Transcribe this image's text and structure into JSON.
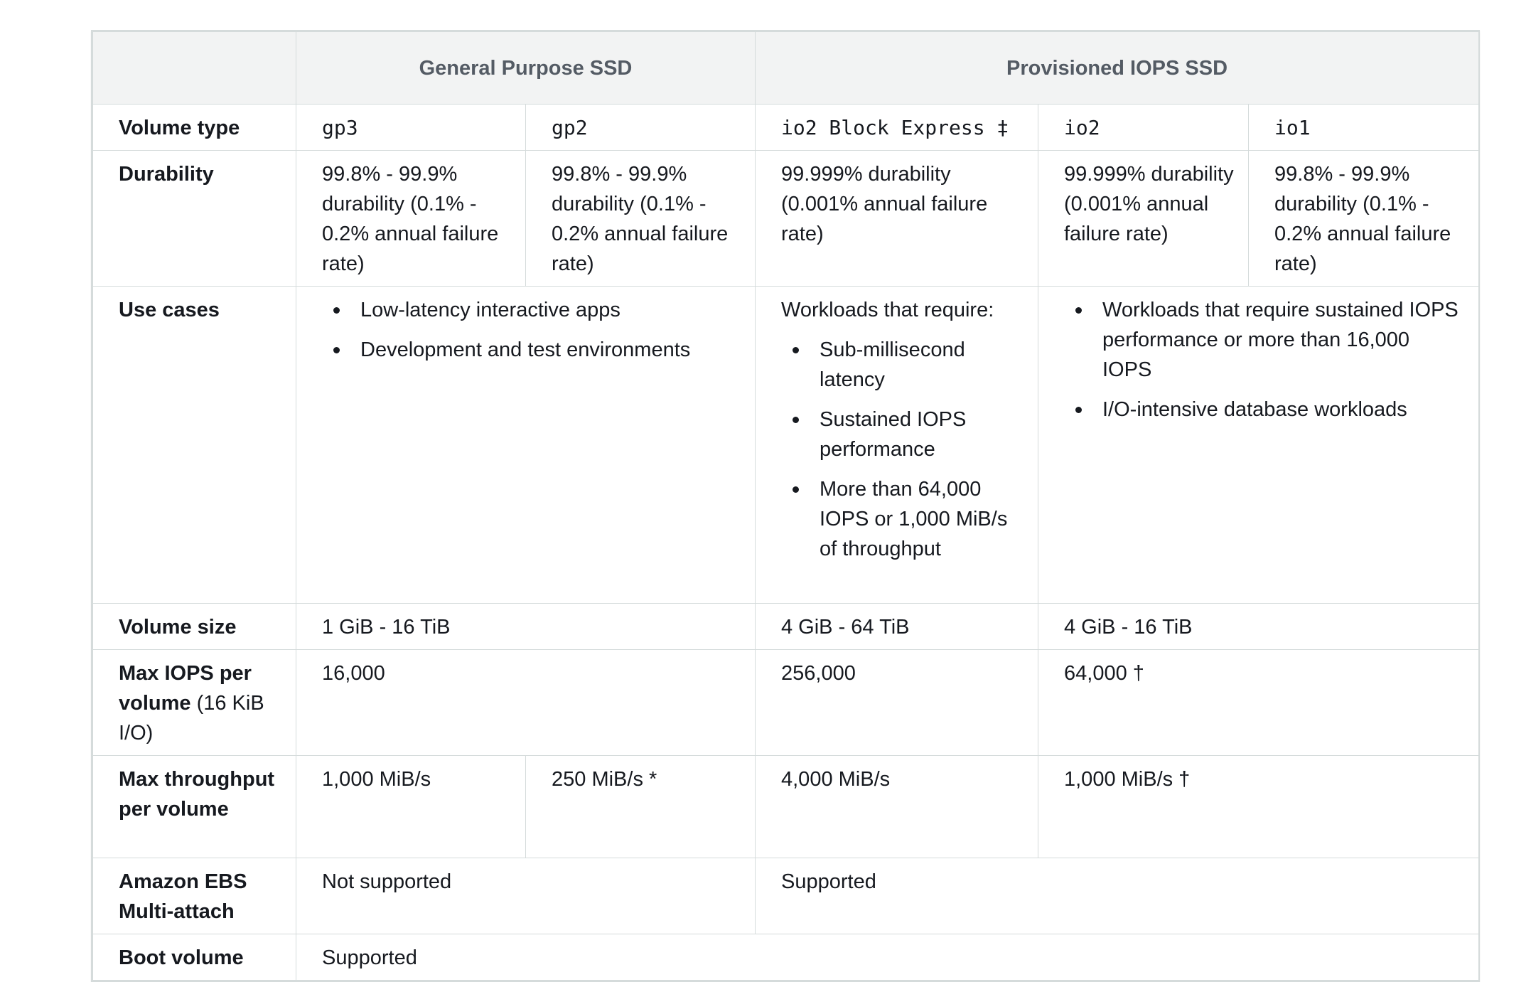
{
  "header": {
    "corner": "",
    "groups": [
      "General Purpose SSD",
      "Provisioned IOPS SSD"
    ]
  },
  "rows": {
    "volume_type": {
      "label": "Volume type",
      "values": [
        "gp3",
        "gp2",
        "io2 Block Express ‡",
        "io2",
        "io1"
      ]
    },
    "durability": {
      "label": "Durability",
      "values": [
        "99.8% - 99.9% durability (0.1% - 0.2% annual failure rate)",
        "99.8% - 99.9% durability (0.1% - 0.2% annual failure rate)",
        "99.999% durability (0.001% annual failure rate)",
        "99.999% durability (0.001% annual failure rate)",
        "99.8% - 99.9% durability (0.1% - 0.2% annual failure rate)"
      ]
    },
    "use_cases": {
      "label": "Use cases",
      "general_purpose": [
        "Low-latency interactive apps",
        "Development and test environments"
      ],
      "io2_block_express_intro": "Workloads that require:",
      "io2_block_express": [
        "Sub-millisecond latency",
        "Sustained IOPS performance",
        "More than 64,000 IOPS or 1,000 MiB/s of throughput"
      ],
      "io2_io1": [
        "Workloads that require sustained IOPS performance or more than 16,000 IOPS",
        "I/O-intensive database workloads"
      ]
    },
    "volume_size": {
      "label": "Volume size",
      "general_purpose": "1 GiB - 16 TiB",
      "io2_block_express": "4 GiB - 64 TiB",
      "io2_io1": "4 GiB - 16 TiB"
    },
    "max_iops": {
      "label_bold": "Max IOPS per volume",
      "label_normal": " (16 KiB I/O)",
      "general_purpose": "16,000",
      "io2_block_express": "256,000",
      "io2_io1": "64,000 †"
    },
    "max_throughput": {
      "label": "Max throughput per volume",
      "gp3": "1,000 MiB/s",
      "gp2": "250 MiB/s *",
      "io2_block_express": "4,000 MiB/s",
      "io2_io1": "1,000 MiB/s †"
    },
    "multi_attach": {
      "label": "Amazon EBS Multi-attach",
      "general_purpose": "Not supported",
      "provisioned_iops": "Supported"
    },
    "boot_volume": {
      "label": "Boot volume",
      "all": "Supported"
    }
  }
}
